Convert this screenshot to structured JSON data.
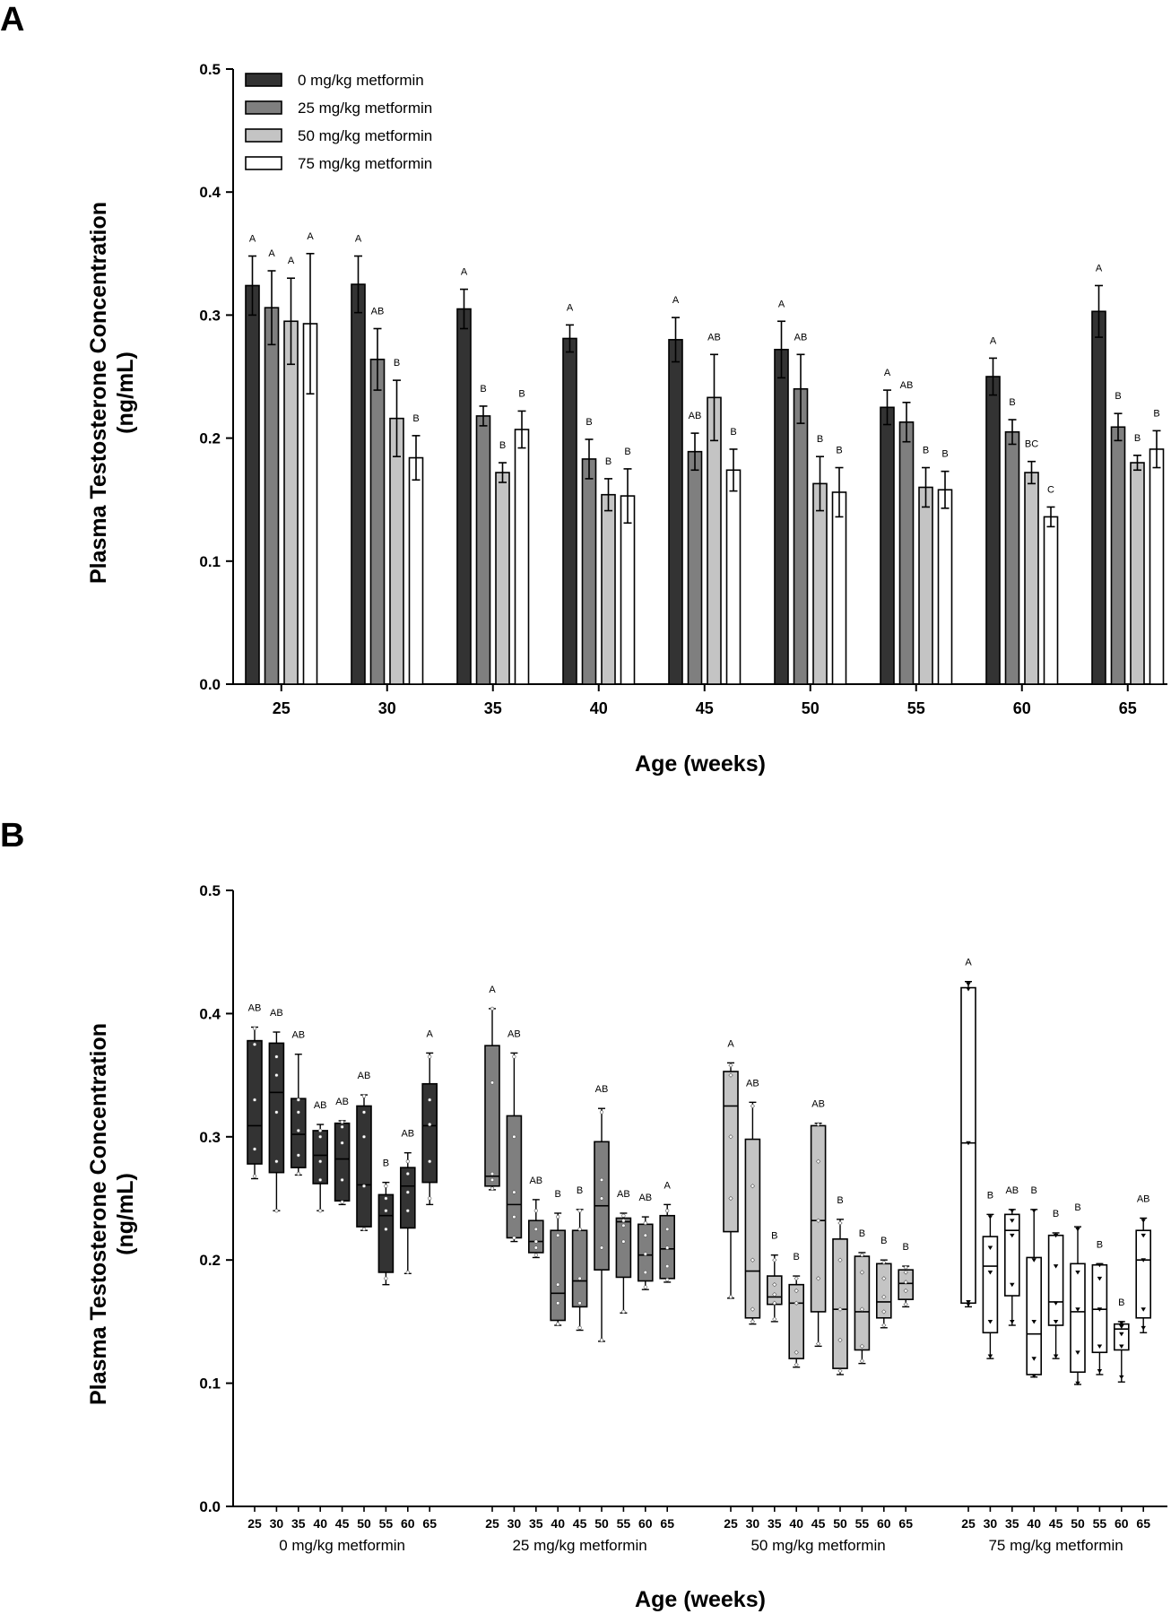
{
  "colors": {
    "0 mg/kg metformin": "#333333",
    "25 mg/kg metformin": "#7f7f7f",
    "50 mg/kg metformin": "#c4c4c4",
    "75 mg/kg metformin": "#ffffff"
  },
  "chart_data": [
    {
      "panel": "A",
      "type": "bar",
      "title": "",
      "xlabel": "Age (weeks)",
      "ylabel": "Plasma Testosterone Concentration",
      "ylabel_unit": "(ng/mL)",
      "ylim": [
        0,
        0.5
      ],
      "yticks": [
        "0.0",
        "0.1",
        "0.2",
        "0.3",
        "0.4",
        "0.5"
      ],
      "legend_position": "top-left",
      "categories": [
        "25",
        "30",
        "35",
        "40",
        "45",
        "50",
        "55",
        "60",
        "65"
      ],
      "series": [
        {
          "name": "0 mg/kg metformin",
          "values": [
            0.324,
            0.325,
            0.305,
            0.281,
            0.28,
            0.272,
            0.225,
            0.25,
            0.303
          ],
          "errors": [
            0.024,
            0.023,
            0.016,
            0.011,
            0.018,
            0.023,
            0.014,
            0.015,
            0.021
          ],
          "letters": [
            "A",
            "A",
            "A",
            "A",
            "A",
            "A",
            "A",
            "A",
            "A"
          ]
        },
        {
          "name": "25 mg/kg metformin",
          "values": [
            0.306,
            0.264,
            0.218,
            0.183,
            0.189,
            0.24,
            0.213,
            0.205,
            0.209
          ],
          "errors": [
            0.03,
            0.025,
            0.008,
            0.016,
            0.015,
            0.028,
            0.016,
            0.01,
            0.011
          ],
          "letters": [
            "A",
            "AB",
            "B",
            "B",
            "AB",
            "AB",
            "AB",
            "B",
            "B"
          ]
        },
        {
          "name": "50 mg/kg metformin",
          "values": [
            0.295,
            0.216,
            0.172,
            0.154,
            0.233,
            0.163,
            0.16,
            0.172,
            0.18
          ],
          "errors": [
            0.035,
            0.031,
            0.008,
            0.013,
            0.035,
            0.022,
            0.016,
            0.009,
            0.006
          ],
          "letters": [
            "A",
            "B",
            "B",
            "B",
            "AB",
            "B",
            "B",
            "BC",
            "B"
          ]
        },
        {
          "name": "75 mg/kg metformin",
          "values": [
            0.293,
            0.184,
            0.207,
            0.153,
            0.174,
            0.156,
            0.158,
            0.136,
            0.191
          ],
          "errors": [
            0.057,
            0.018,
            0.015,
            0.022,
            0.017,
            0.02,
            0.015,
            0.008,
            0.015
          ],
          "letters": [
            "A",
            "B",
            "B",
            "B",
            "B",
            "B",
            "B",
            "C",
            "B"
          ]
        }
      ]
    },
    {
      "panel": "B",
      "type": "box",
      "title": "",
      "xlabel": "Age (weeks)",
      "ylabel": "Plasma Testosterone Concentration",
      "ylabel_unit": "(ng/mL)",
      "ylim": [
        0,
        0.5
      ],
      "yticks": [
        "0.0",
        "0.1",
        "0.2",
        "0.3",
        "0.4",
        "0.5"
      ],
      "ages": [
        "25",
        "30",
        "35",
        "40",
        "45",
        "50",
        "55",
        "60",
        "65"
      ],
      "groups": [
        {
          "name": "0 mg/kg metformin",
          "marker": "circle",
          "boxes": [
            {
              "min": 0.266,
              "q1": 0.278,
              "med": 0.309,
              "q3": 0.378,
              "max": 0.389,
              "pts": [
                0.268,
                0.29,
                0.33,
                0.375,
                0.388
              ],
              "label": "AB"
            },
            {
              "min": 0.24,
              "q1": 0.271,
              "med": 0.336,
              "q3": 0.376,
              "max": 0.385,
              "pts": [
                0.24,
                0.28,
                0.32,
                0.35,
                0.365
              ],
              "label": "AB"
            },
            {
              "min": 0.269,
              "q1": 0.275,
              "med": 0.302,
              "q3": 0.331,
              "max": 0.367,
              "pts": [
                0.27,
                0.285,
                0.305,
                0.32,
                0.33
              ],
              "label": "AB"
            },
            {
              "min": 0.24,
              "q1": 0.262,
              "med": 0.285,
              "q3": 0.305,
              "max": 0.31,
              "pts": [
                0.24,
                0.265,
                0.28,
                0.3,
                0.305
              ],
              "label": "AB"
            },
            {
              "min": 0.245,
              "q1": 0.248,
              "med": 0.282,
              "q3": 0.311,
              "max": 0.313,
              "pts": [
                0.247,
                0.265,
                0.295,
                0.308,
                0.312
              ],
              "label": "AB"
            },
            {
              "min": 0.224,
              "q1": 0.227,
              "med": 0.261,
              "q3": 0.325,
              "max": 0.334,
              "pts": [
                0.225,
                0.26,
                0.3,
                0.32,
                0.333
              ],
              "label": "AB"
            },
            {
              "min": 0.18,
              "q1": 0.19,
              "med": 0.236,
              "q3": 0.253,
              "max": 0.263,
              "pts": [
                0.185,
                0.225,
                0.24,
                0.25,
                0.26
              ],
              "label": "B"
            },
            {
              "min": 0.189,
              "q1": 0.226,
              "med": 0.26,
              "q3": 0.275,
              "max": 0.287,
              "pts": [
                0.19,
                0.24,
                0.255,
                0.27,
                0.28
              ],
              "label": "AB"
            },
            {
              "min": 0.245,
              "q1": 0.263,
              "med": 0.309,
              "q3": 0.343,
              "max": 0.368,
              "pts": [
                0.25,
                0.28,
                0.31,
                0.33,
                0.365
              ],
              "label": "A"
            }
          ]
        },
        {
          "name": "25 mg/kg metformin",
          "marker": "circle",
          "boxes": [
            {
              "min": 0.257,
              "q1": 0.26,
              "med": 0.268,
              "q3": 0.374,
              "max": 0.404,
              "pts": [
                0.258,
                0.265,
                0.27,
                0.344,
                0.404
              ],
              "label": "A"
            },
            {
              "min": 0.215,
              "q1": 0.218,
              "med": 0.245,
              "q3": 0.317,
              "max": 0.368,
              "pts": [
                0.218,
                0.235,
                0.255,
                0.3,
                0.365
              ],
              "label": "AB"
            },
            {
              "min": 0.202,
              "q1": 0.206,
              "med": 0.215,
              "q3": 0.232,
              "max": 0.249,
              "pts": [
                0.204,
                0.21,
                0.215,
                0.225,
                0.24
              ],
              "label": "AB"
            },
            {
              "min": 0.147,
              "q1": 0.151,
              "med": 0.173,
              "q3": 0.224,
              "max": 0.238,
              "pts": [
                0.148,
                0.165,
                0.18,
                0.22,
                0.235
              ],
              "label": "B"
            },
            {
              "min": 0.143,
              "q1": 0.162,
              "med": 0.183,
              "q3": 0.224,
              "max": 0.241,
              "pts": [
                0.145,
                0.165,
                0.185,
                0.225,
                0.24
              ],
              "label": "B"
            },
            {
              "min": 0.134,
              "q1": 0.192,
              "med": 0.244,
              "q3": 0.296,
              "max": 0.323,
              "pts": [
                0.135,
                0.21,
                0.25,
                0.265,
                0.32
              ],
              "label": "AB"
            },
            {
              "min": 0.157,
              "q1": 0.186,
              "med": 0.231,
              "q3": 0.234,
              "max": 0.238,
              "pts": [
                0.158,
                0.215,
                0.228,
                0.232,
                0.236
              ],
              "label": "AB"
            },
            {
              "min": 0.176,
              "q1": 0.183,
              "med": 0.204,
              "q3": 0.229,
              "max": 0.235,
              "pts": [
                0.178,
                0.19,
                0.205,
                0.22,
                0.23
              ],
              "label": "AB"
            },
            {
              "min": 0.182,
              "q1": 0.185,
              "med": 0.209,
              "q3": 0.236,
              "max": 0.245,
              "pts": [
                0.184,
                0.195,
                0.21,
                0.225,
                0.24
              ],
              "label": "A"
            }
          ]
        },
        {
          "name": "50 mg/kg metformin",
          "marker": "diamond",
          "boxes": [
            {
              "min": 0.169,
              "q1": 0.223,
              "med": 0.325,
              "q3": 0.353,
              "max": 0.36,
              "pts": [
                0.17,
                0.25,
                0.3,
                0.35,
                0.358
              ],
              "label": "A"
            },
            {
              "min": 0.148,
              "q1": 0.153,
              "med": 0.191,
              "q3": 0.298,
              "max": 0.328,
              "pts": [
                0.15,
                0.16,
                0.2,
                0.26,
                0.325
              ],
              "label": "AB"
            },
            {
              "min": 0.15,
              "q1": 0.164,
              "med": 0.17,
              "q3": 0.187,
              "max": 0.204,
              "pts": [
                0.152,
                0.165,
                0.172,
                0.18,
                0.2
              ],
              "label": "B"
            },
            {
              "min": 0.113,
              "q1": 0.12,
              "med": 0.165,
              "q3": 0.18,
              "max": 0.187,
              "pts": [
                0.115,
                0.125,
                0.165,
                0.175,
                0.185
              ],
              "label": "B"
            },
            {
              "min": 0.13,
              "q1": 0.158,
              "med": 0.232,
              "q3": 0.309,
              "max": 0.311,
              "pts": [
                0.132,
                0.185,
                0.232,
                0.28,
                0.31
              ],
              "label": "AB"
            },
            {
              "min": 0.107,
              "q1": 0.112,
              "med": 0.16,
              "q3": 0.217,
              "max": 0.233,
              "pts": [
                0.11,
                0.135,
                0.16,
                0.2,
                0.23
              ],
              "label": "B"
            },
            {
              "min": 0.116,
              "q1": 0.127,
              "med": 0.158,
              "q3": 0.203,
              "max": 0.206,
              "pts": [
                0.118,
                0.13,
                0.16,
                0.19,
                0.204
              ],
              "label": "B"
            },
            {
              "min": 0.145,
              "q1": 0.153,
              "med": 0.166,
              "q3": 0.197,
              "max": 0.2,
              "pts": [
                0.147,
                0.158,
                0.17,
                0.185,
                0.198
              ],
              "label": "B"
            },
            {
              "min": 0.162,
              "q1": 0.168,
              "med": 0.181,
              "q3": 0.192,
              "max": 0.195,
              "pts": [
                0.164,
                0.175,
                0.182,
                0.19,
                0.194
              ],
              "label": "B"
            }
          ]
        },
        {
          "name": "75 mg/kg metformin",
          "marker": "triangle",
          "boxes": [
            {
              "min": 0.162,
              "q1": 0.165,
              "med": 0.295,
              "q3": 0.421,
              "max": 0.426,
              "pts": [
                0.164,
                0.166,
                0.295,
                0.42,
                0.424
              ],
              "label": "A"
            },
            {
              "min": 0.12,
              "q1": 0.141,
              "med": 0.195,
              "q3": 0.219,
              "max": 0.237,
              "pts": [
                0.122,
                0.15,
                0.19,
                0.21,
                0.235
              ],
              "label": "B"
            },
            {
              "min": 0.147,
              "q1": 0.171,
              "med": 0.224,
              "q3": 0.237,
              "max": 0.241,
              "pts": [
                0.15,
                0.18,
                0.22,
                0.232,
                0.24
              ],
              "label": "AB"
            },
            {
              "min": 0.105,
              "q1": 0.107,
              "med": 0.14,
              "q3": 0.202,
              "max": 0.241,
              "pts": [
                0.106,
                0.12,
                0.15,
                0.2,
                0.24
              ],
              "label": "B"
            },
            {
              "min": 0.12,
              "q1": 0.147,
              "med": 0.166,
              "q3": 0.22,
              "max": 0.222,
              "pts": [
                0.122,
                0.15,
                0.165,
                0.195,
                0.22
              ],
              "label": "B"
            },
            {
              "min": 0.099,
              "q1": 0.109,
              "med": 0.158,
              "q3": 0.197,
              "max": 0.227,
              "pts": [
                0.1,
                0.125,
                0.16,
                0.19,
                0.225
              ],
              "label": "B"
            },
            {
              "min": 0.107,
              "q1": 0.125,
              "med": 0.16,
              "q3": 0.196,
              "max": 0.197,
              "pts": [
                0.11,
                0.13,
                0.16,
                0.185,
                0.196
              ],
              "label": "B"
            },
            {
              "min": 0.101,
              "q1": 0.127,
              "med": 0.144,
              "q3": 0.148,
              "max": 0.15,
              "pts": [
                0.105,
                0.13,
                0.14,
                0.146,
                0.149
              ],
              "label": "B"
            },
            {
              "min": 0.141,
              "q1": 0.153,
              "med": 0.2,
              "q3": 0.224,
              "max": 0.234,
              "pts": [
                0.145,
                0.16,
                0.2,
                0.22,
                0.232
              ],
              "label": "AB"
            }
          ]
        }
      ]
    }
  ]
}
